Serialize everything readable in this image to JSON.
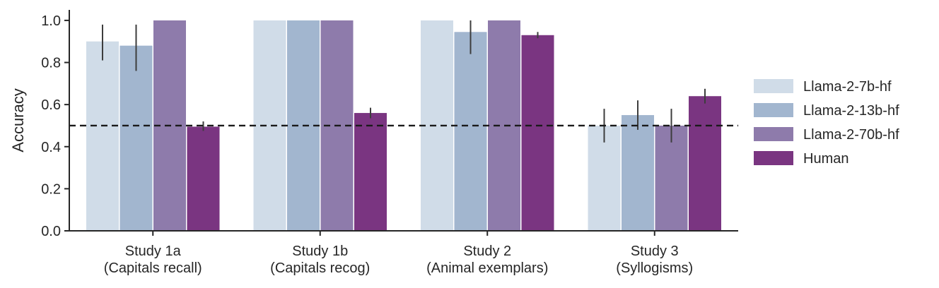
{
  "chart_data": {
    "type": "bar",
    "title": "",
    "xlabel": "",
    "ylabel": "Accuracy",
    "ylim": [
      0,
      1.05
    ],
    "yticks": [
      "0.0",
      "0.2",
      "0.4",
      "0.6",
      "0.8",
      "1.0"
    ],
    "categories": [
      [
        "Study 1a",
        "(Capitals recall)"
      ],
      [
        "Study 1b",
        "(Capitals recog)"
      ],
      [
        "Study 2",
        "(Animal exemplars)"
      ],
      [
        "Study 3",
        "(Syllogisms)"
      ]
    ],
    "series": [
      {
        "name": "Llama-2-7b-hf",
        "color": "#d0dce8",
        "values": [
          0.9,
          1.0,
          1.0,
          0.5
        ],
        "err_low": [
          0.81,
          1.0,
          1.0,
          0.42
        ],
        "err_high": [
          0.98,
          1.0,
          1.0,
          0.58
        ]
      },
      {
        "name": "Llama-2-13b-hf",
        "color": "#a2b6cf",
        "values": [
          0.88,
          1.0,
          0.945,
          0.55
        ],
        "err_low": [
          0.76,
          1.0,
          0.84,
          0.48
        ],
        "err_high": [
          0.98,
          1.0,
          1.0,
          0.62
        ]
      },
      {
        "name": "Llama-2-70b-hf",
        "color": "#8e7bab",
        "values": [
          1.0,
          1.0,
          1.0,
          0.5
        ],
        "err_low": [
          1.0,
          1.0,
          1.0,
          0.42
        ],
        "err_high": [
          1.0,
          1.0,
          1.0,
          0.58
        ]
      },
      {
        "name": "Human",
        "color": "#7a3581",
        "values": [
          0.495,
          0.56,
          0.93,
          0.64
        ],
        "err_low": [
          0.475,
          0.535,
          0.915,
          0.605
        ],
        "err_high": [
          0.52,
          0.585,
          0.945,
          0.675
        ]
      }
    ],
    "reference_line": {
      "value": 0.5,
      "style": "dashed"
    },
    "legend": {
      "position": "right"
    },
    "grid": false
  }
}
